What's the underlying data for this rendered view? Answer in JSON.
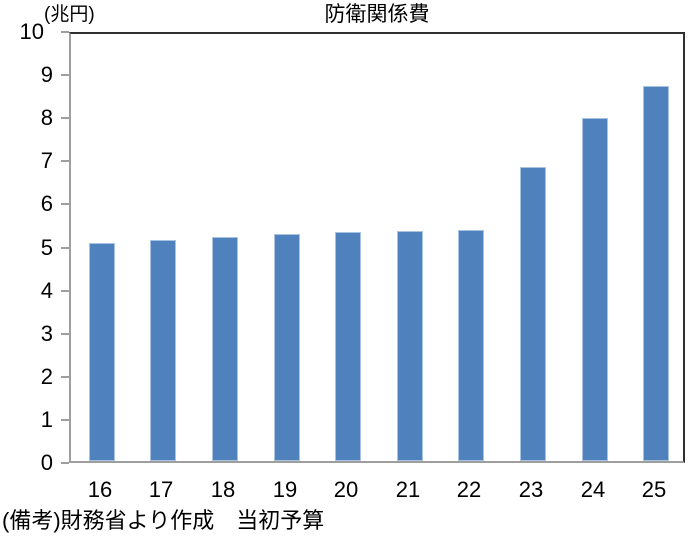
{
  "chart_data": {
    "type": "bar",
    "title": "防衛関係費",
    "unit_label": "(兆円)",
    "categories": [
      "16",
      "17",
      "18",
      "19",
      "20",
      "21",
      "22",
      "23",
      "24",
      "25"
    ],
    "values": [
      5.05,
      5.13,
      5.19,
      5.26,
      5.31,
      5.34,
      5.37,
      6.82,
      7.95,
      8.7
    ],
    "xlabel": "",
    "ylabel": "兆円",
    "ylim": [
      0,
      10
    ],
    "ytick_step": 1,
    "grid": false,
    "legend_position": "none",
    "note": "(備考)財務省より作成　当初予算",
    "bar_color": "#4F81BD",
    "bar_border_color": "#A9C4E0",
    "axis_color": "#9E9E9E",
    "plot_border_color": "#303030",
    "text_color": "#000000"
  }
}
